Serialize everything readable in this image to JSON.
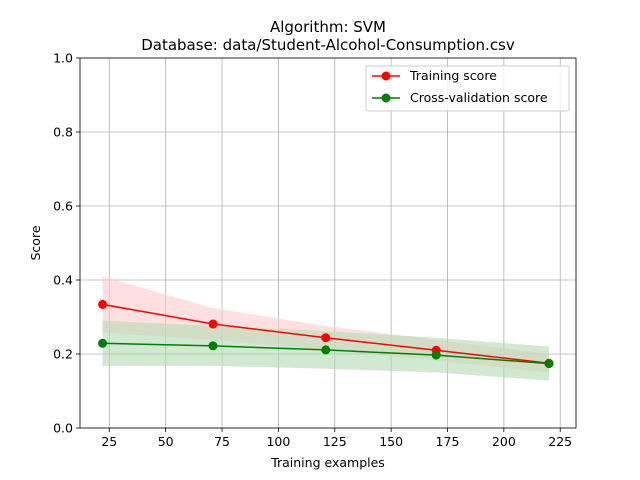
{
  "chart_data": {
    "type": "line",
    "title": "Algorithm: SVM",
    "subtitle": "Database: data/Student-Alcohol-Consumption.csv",
    "xlabel": "Training examples",
    "ylabel": "Score",
    "xlim": [
      12,
      232
    ],
    "ylim": [
      0.0,
      1.0
    ],
    "xticks": [
      25,
      50,
      75,
      100,
      125,
      150,
      175,
      200,
      225
    ],
    "xtick_labels": [
      "25",
      "50",
      "75",
      "100",
      "125",
      "150",
      "175",
      "200",
      "225"
    ],
    "yticks": [
      0.0,
      0.2,
      0.4,
      0.6,
      0.8,
      1.0
    ],
    "ytick_labels": [
      "0.0",
      "0.2",
      "0.4",
      "0.6",
      "0.8",
      "1.0"
    ],
    "grid": true,
    "legend_position": "top-right",
    "x": [
      22,
      71,
      121,
      170,
      220
    ],
    "series": [
      {
        "name": "Training score",
        "color": "#ff0000",
        "band_color": "#ffcccc",
        "values": [
          0.334,
          0.281,
          0.244,
          0.21,
          0.175
        ],
        "lower": [
          0.258,
          0.238,
          0.212,
          0.182,
          0.15
        ],
        "upper": [
          0.41,
          0.324,
          0.276,
          0.238,
          0.2
        ]
      },
      {
        "name": "Cross-validation score",
        "color": "#008000",
        "band_color": "#b3dab3",
        "values": [
          0.229,
          0.222,
          0.211,
          0.197,
          0.174
        ],
        "lower": [
          0.168,
          0.168,
          0.16,
          0.15,
          0.128
        ],
        "upper": [
          0.29,
          0.276,
          0.262,
          0.244,
          0.22
        ]
      }
    ]
  }
}
